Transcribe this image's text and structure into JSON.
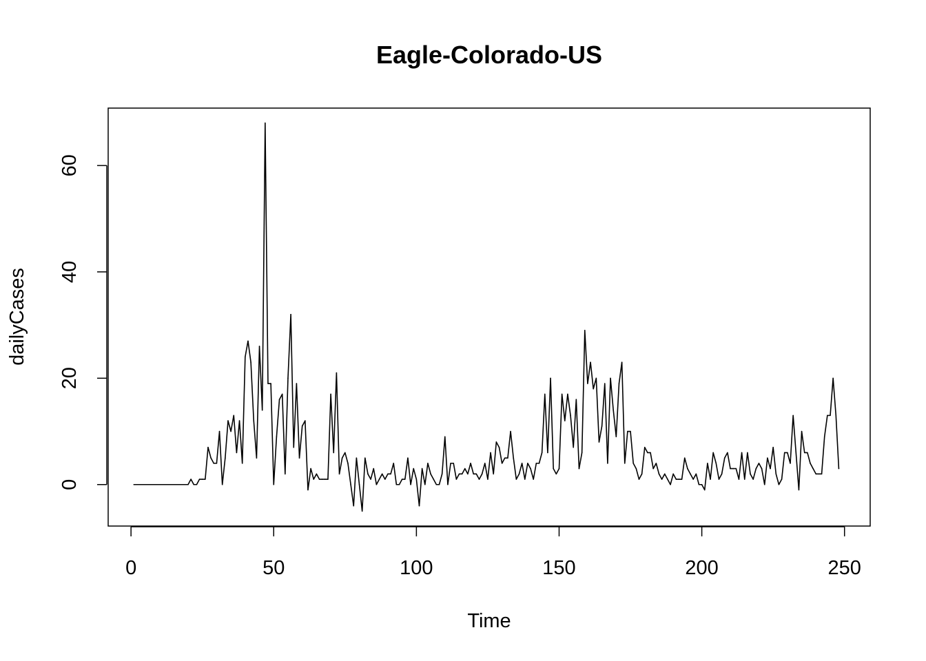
{
  "chart_data": {
    "type": "line",
    "title": "Eagle-Colorado-US",
    "xlabel": "Time",
    "ylabel": "dailyCases",
    "xlim": [
      -8,
      259
    ],
    "ylim": [
      -7.8,
      70.8
    ],
    "x_ticks": [
      0,
      50,
      100,
      150,
      200,
      250
    ],
    "y_ticks": [
      0,
      20,
      40,
      60
    ],
    "x_tick_labels": [
      "0",
      "50",
      "100",
      "150",
      "200",
      "250"
    ],
    "y_tick_labels": [
      "0",
      "20",
      "40",
      "60"
    ],
    "grid": false,
    "legend": "none",
    "x_start": 1,
    "values": [
      0,
      0,
      0,
      0,
      0,
      0,
      0,
      0,
      0,
      0,
      0,
      0,
      0,
      0,
      0,
      0,
      0,
      0,
      0,
      0,
      1,
      0,
      0,
      1,
      1,
      1,
      7,
      5,
      4,
      4,
      10,
      0,
      5,
      12,
      10,
      13,
      6,
      12,
      4,
      24,
      27,
      23,
      12,
      5,
      26,
      14,
      68,
      19,
      19,
      0,
      9,
      16,
      17,
      2,
      20,
      32,
      7,
      19,
      5,
      11,
      12,
      -1,
      3,
      1,
      2,
      1,
      1,
      1,
      1,
      17,
      6,
      21,
      2,
      5,
      6,
      4,
      0,
      -4,
      5,
      0,
      -5,
      5,
      2,
      1,
      3,
      0,
      1,
      2,
      1,
      2,
      2,
      4,
      0,
      0,
      1,
      1,
      5,
      0,
      3,
      1,
      -4,
      3,
      0,
      4,
      2,
      1,
      0,
      0,
      2,
      9,
      0,
      4,
      4,
      1,
      2,
      2,
      3,
      2,
      4,
      2,
      2,
      1,
      2,
      4,
      1,
      6,
      2,
      8,
      7,
      4,
      5,
      5,
      10,
      5,
      1,
      2,
      4,
      1,
      4,
      3,
      1,
      4,
      4,
      6,
      17,
      6,
      20,
      3,
      2,
      3,
      17,
      12,
      17,
      13,
      7,
      16,
      3,
      6,
      29,
      19,
      23,
      18,
      20,
      8,
      11,
      19,
      4,
      20,
      14,
      9,
      19,
      23,
      4,
      10,
      10,
      4,
      3,
      1,
      2,
      7,
      6,
      6,
      3,
      4,
      2,
      1,
      2,
      1,
      0,
      2,
      1,
      1,
      1,
      5,
      3,
      2,
      1,
      2,
      0,
      0,
      -1,
      4,
      1,
      6,
      4,
      1,
      2,
      5,
      6,
      3,
      3,
      3,
      1,
      6,
      1,
      6,
      2,
      1,
      3,
      4,
      3,
      0,
      5,
      3,
      7,
      2,
      0,
      1,
      6,
      6,
      4,
      13,
      6,
      -1,
      10,
      6,
      6,
      4,
      3,
      2,
      2,
      2,
      9,
      13,
      13,
      20,
      13,
      3
    ]
  }
}
